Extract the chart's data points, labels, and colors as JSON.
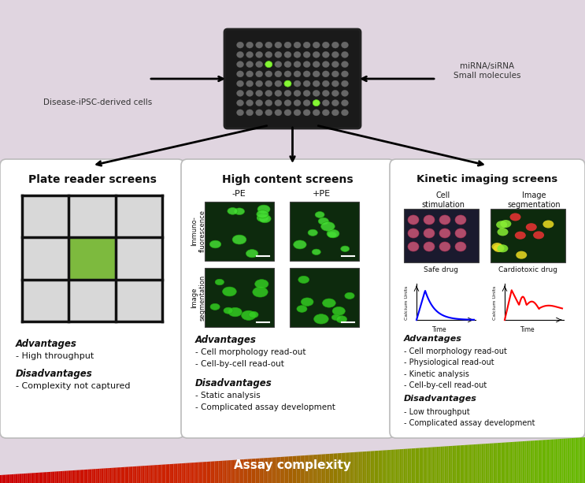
{
  "bg_color": "#e0d5e0",
  "top_left_label": "Disease-iPSC-derived cells",
  "top_right_label": "miRNA/siRNA\nSmall molecules",
  "panel1_title": "Plate reader screens",
  "panel2_title": "High content screens",
  "panel3_title": "Kinetic imaging screens",
  "panel1_adv_title": "Advantages",
  "panel1_adv": "- High throughput",
  "panel1_dis_title": "Disadvantages",
  "panel1_dis": "- Complexity not captured",
  "panel2_adv_title": "Advantages",
  "panel2_adv": "- Cell morphology read-out\n- Cell-by-cell read-out",
  "panel2_dis_title": "Disadvantages",
  "panel2_dis": "- Static analysis\n- Complicated assay development",
  "panel3_adv_title": "Advantages",
  "panel3_adv": "- Cell morphology read-out\n- Physiological read-out\n- Kinetic analysis\n- Cell-by-cell read-out",
  "panel3_dis_title": "Disadvantages",
  "panel3_dis": "- Low throughput\n- Complicated assay development",
  "panel3_sub1": "Cell\nstimulation",
  "panel3_sub2": "Image\nsegmentation",
  "panel3_drug1": "Safe drug",
  "panel3_drug2": "Cardiotoxic drug",
  "panel2_col1": "-PE",
  "panel2_col2": "+PE",
  "panel2_row1": "Immuno-\nfluorescence",
  "panel2_row2": "Image\nsegmentation",
  "assay_label": "Assay complexity"
}
